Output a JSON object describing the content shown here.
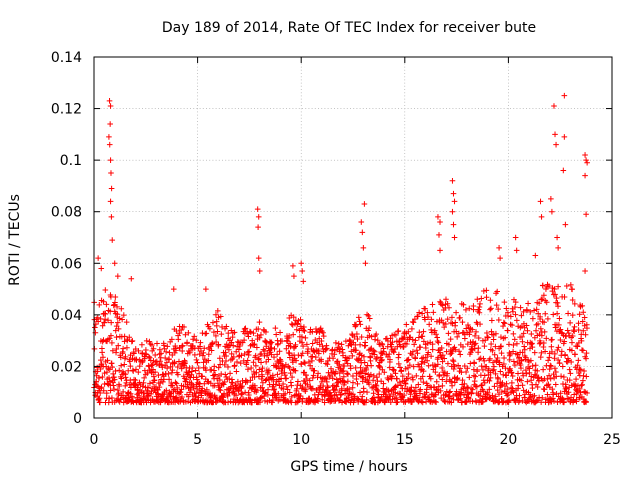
{
  "colors": {
    "series": "#ff0000",
    "axis": "#000000",
    "grid": "#a0a0a0"
  },
  "chart_data": {
    "type": "scatter",
    "title": "Day 189 of 2014, Rate Of TEC Index for receiver bute",
    "xlabel": "GPS time / hours",
    "ylabel": "ROTI / TECUs",
    "xlim": [
      0,
      25
    ],
    "ylim": [
      0,
      0.14
    ],
    "xticks": [
      0,
      5,
      10,
      15,
      20,
      25
    ],
    "xtick_labels": [
      "0",
      "5",
      "10",
      "15",
      "20",
      "25"
    ],
    "yticks": [
      0,
      0.02,
      0.04,
      0.06,
      0.08,
      0.1,
      0.12,
      0.14
    ],
    "ytick_labels": [
      "0",
      "0.02",
      "0.04",
      "0.06",
      "0.08",
      "0.1",
      "0.12",
      "0.14"
    ],
    "grid": true,
    "marker": "+",
    "series": [
      {
        "name": "ROTI",
        "envelope_hours": [
          0,
          0.5,
          1,
          1.5,
          2,
          2.5,
          3,
          3.5,
          4,
          4.5,
          5,
          5.5,
          6,
          6.5,
          7,
          7.5,
          8,
          8.5,
          9,
          9.5,
          10,
          10.5,
          11,
          11.5,
          12,
          12.5,
          13,
          13.5,
          14,
          14.5,
          15,
          15.5,
          16,
          16.5,
          17,
          17.5,
          18,
          18.5,
          19,
          19.5,
          20,
          20.5,
          21,
          21.5,
          22,
          22.5,
          23,
          23.5,
          23.8
        ],
        "envelope_roti": [
          0.045,
          0.05,
          0.048,
          0.04,
          0.028,
          0.03,
          0.03,
          0.032,
          0.038,
          0.036,
          0.032,
          0.038,
          0.042,
          0.04,
          0.035,
          0.035,
          0.038,
          0.035,
          0.035,
          0.04,
          0.038,
          0.035,
          0.035,
          0.03,
          0.03,
          0.035,
          0.045,
          0.035,
          0.03,
          0.035,
          0.036,
          0.04,
          0.043,
          0.045,
          0.048,
          0.044,
          0.045,
          0.048,
          0.05,
          0.05,
          0.048,
          0.046,
          0.045,
          0.05,
          0.055,
          0.05,
          0.052,
          0.045,
          0.04
        ],
        "spikes": [
          {
            "x": 0.2,
            "y": 0.062
          },
          {
            "x": 0.35,
            "y": 0.058
          },
          {
            "x": 0.75,
            "y": 0.123
          },
          {
            "x": 0.8,
            "y": 0.121
          },
          {
            "x": 0.78,
            "y": 0.114
          },
          {
            "x": 0.72,
            "y": 0.109
          },
          {
            "x": 0.76,
            "y": 0.106
          },
          {
            "x": 0.8,
            "y": 0.1
          },
          {
            "x": 0.82,
            "y": 0.095
          },
          {
            "x": 0.85,
            "y": 0.089
          },
          {
            "x": 0.8,
            "y": 0.084
          },
          {
            "x": 0.84,
            "y": 0.078
          },
          {
            "x": 0.88,
            "y": 0.069
          },
          {
            "x": 1.0,
            "y": 0.06
          },
          {
            "x": 1.15,
            "y": 0.055
          },
          {
            "x": 1.8,
            "y": 0.054
          },
          {
            "x": 3.85,
            "y": 0.05
          },
          {
            "x": 5.4,
            "y": 0.05
          },
          {
            "x": 7.9,
            "y": 0.081
          },
          {
            "x": 7.95,
            "y": 0.078
          },
          {
            "x": 7.92,
            "y": 0.074
          },
          {
            "x": 7.95,
            "y": 0.062
          },
          {
            "x": 8.0,
            "y": 0.057
          },
          {
            "x": 9.6,
            "y": 0.059
          },
          {
            "x": 9.65,
            "y": 0.055
          },
          {
            "x": 10.0,
            "y": 0.06
          },
          {
            "x": 10.05,
            "y": 0.057
          },
          {
            "x": 10.1,
            "y": 0.053
          },
          {
            "x": 12.9,
            "y": 0.076
          },
          {
            "x": 12.95,
            "y": 0.072
          },
          {
            "x": 13.05,
            "y": 0.083
          },
          {
            "x": 13.0,
            "y": 0.066
          },
          {
            "x": 13.1,
            "y": 0.06
          },
          {
            "x": 16.6,
            "y": 0.078
          },
          {
            "x": 16.7,
            "y": 0.076
          },
          {
            "x": 16.65,
            "y": 0.071
          },
          {
            "x": 16.7,
            "y": 0.065
          },
          {
            "x": 17.3,
            "y": 0.092
          },
          {
            "x": 17.35,
            "y": 0.087
          },
          {
            "x": 17.4,
            "y": 0.084
          },
          {
            "x": 17.3,
            "y": 0.08
          },
          {
            "x": 17.35,
            "y": 0.075
          },
          {
            "x": 17.4,
            "y": 0.07
          },
          {
            "x": 19.55,
            "y": 0.066
          },
          {
            "x": 19.6,
            "y": 0.062
          },
          {
            "x": 20.35,
            "y": 0.07
          },
          {
            "x": 20.4,
            "y": 0.065
          },
          {
            "x": 21.3,
            "y": 0.063
          },
          {
            "x": 21.55,
            "y": 0.084
          },
          {
            "x": 21.6,
            "y": 0.078
          },
          {
            "x": 22.05,
            "y": 0.085
          },
          {
            "x": 22.1,
            "y": 0.08
          },
          {
            "x": 22.2,
            "y": 0.121
          },
          {
            "x": 22.25,
            "y": 0.11
          },
          {
            "x": 22.3,
            "y": 0.106
          },
          {
            "x": 22.35,
            "y": 0.07
          },
          {
            "x": 22.4,
            "y": 0.066
          },
          {
            "x": 22.7,
            "y": 0.125
          },
          {
            "x": 22.7,
            "y": 0.109
          },
          {
            "x": 22.65,
            "y": 0.096
          },
          {
            "x": 22.75,
            "y": 0.075
          },
          {
            "x": 23.7,
            "y": 0.102
          },
          {
            "x": 23.75,
            "y": 0.1
          },
          {
            "x": 23.8,
            "y": 0.099
          },
          {
            "x": 23.7,
            "y": 0.094
          },
          {
            "x": 23.75,
            "y": 0.079
          },
          {
            "x": 23.7,
            "y": 0.057
          }
        ]
      }
    ]
  }
}
